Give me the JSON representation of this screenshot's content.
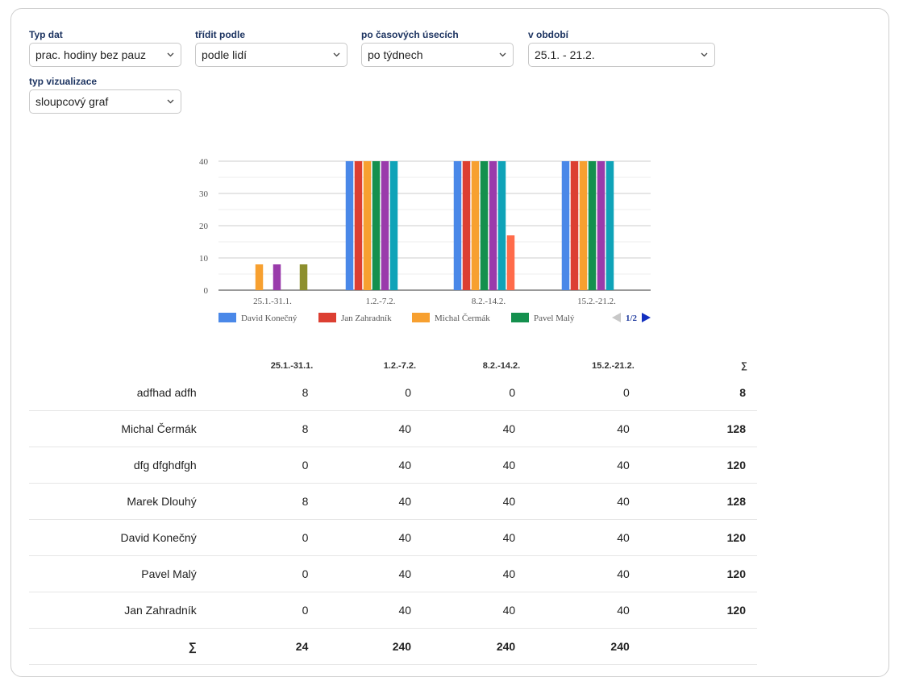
{
  "filters": [
    {
      "label": "Typ dat",
      "value": "prac. hodiny bez pauz"
    },
    {
      "label": "třídit podle",
      "value": "podle lidí"
    },
    {
      "label": "po časových úsecích",
      "value": "po týdnech"
    },
    {
      "label": "v období",
      "value": "25.1. - 21.2."
    },
    {
      "label": "typ vizualizace",
      "value": "sloupcový graf"
    }
  ],
  "chart_data": {
    "type": "bar",
    "categories": [
      "25.1.-31.1.",
      "1.2.-7.2.",
      "8.2.-14.2.",
      "15.2.-21.2."
    ],
    "ylim": [
      0,
      40
    ],
    "yticks": [
      0,
      10,
      20,
      30,
      40
    ],
    "grid": true,
    "legend_position": "bottom",
    "legend_page": "1/2",
    "series": [
      {
        "name": "David Konečný",
        "color": "#4a88e8",
        "values": [
          0,
          40,
          40,
          40
        ]
      },
      {
        "name": "Jan Zahradník",
        "color": "#dc3f32",
        "values": [
          0,
          40,
          40,
          40
        ]
      },
      {
        "name": "Michal Čermák",
        "color": "#f7a030",
        "values": [
          8,
          40,
          40,
          40
        ]
      },
      {
        "name": "Pavel Malý",
        "color": "#14904e",
        "values": [
          0,
          40,
          40,
          40
        ]
      },
      {
        "color": "#9a3bab",
        "values": [
          8,
          40,
          40,
          40
        ]
      },
      {
        "color": "#0fa3b8",
        "values": [
          0,
          40,
          40,
          40
        ]
      },
      {
        "color": "#ff6b4a",
        "values": [
          0,
          0,
          17,
          0
        ]
      },
      {
        "color": "#8d8f2e",
        "values": [
          8,
          0,
          0,
          0
        ]
      }
    ]
  },
  "table": {
    "columns": [
      "25.1.-31.1.",
      "1.2.-7.2.",
      "8.2.-14.2.",
      "15.2.-21.2.",
      "∑"
    ],
    "rows": [
      {
        "name": "adfhad adfh",
        "values": [
          "8",
          "0",
          "0",
          "0"
        ],
        "total": "8"
      },
      {
        "name": "Michal Čermák",
        "values": [
          "8",
          "40",
          "40",
          "40"
        ],
        "total": "128"
      },
      {
        "name": "dfg dfghdfgh",
        "values": [
          "0",
          "40",
          "40",
          "40"
        ],
        "total": "120"
      },
      {
        "name": "Marek Dlouhý",
        "values": [
          "8",
          "40",
          "40",
          "40"
        ],
        "total": "128"
      },
      {
        "name": "David Konečný",
        "values": [
          "0",
          "40",
          "40",
          "40"
        ],
        "total": "120"
      },
      {
        "name": "Pavel Malý",
        "values": [
          "0",
          "40",
          "40",
          "40"
        ],
        "total": "120"
      },
      {
        "name": "Jan Zahradník",
        "values": [
          "0",
          "40",
          "40",
          "40"
        ],
        "total": "120"
      }
    ],
    "sum_row": {
      "label": "∑",
      "values": [
        "24",
        "240",
        "240",
        "240"
      ]
    }
  }
}
